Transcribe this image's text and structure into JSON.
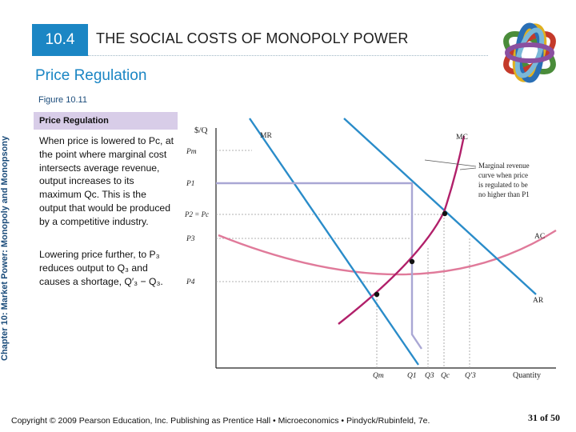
{
  "header": {
    "section_number": "10.4",
    "title": "THE SOCIAL COSTS OF MONOPOLY POWER"
  },
  "subtitle": "Price Regulation",
  "side_label": "Chapter 10: Market Power: Monopoly and Monopsony",
  "figure_label": "Figure 10.11",
  "textbox": {
    "title": "Price Regulation",
    "para1": "When price is lowered to Pᴄ, at the point where marginal cost intersects average revenue, output increases to its maximum Qᴄ. This is the output that would be produced by a competitive industry.",
    "para2": "Lowering price further, to P₃ reduces output to Q₃ and causes a shortage, Q′₃ − Q₃."
  },
  "diagram": {
    "y_axis_label": "$/Q",
    "x_axis_label": "Quantity",
    "price_labels": [
      "Pm",
      "P1",
      "P2 = Pc",
      "P3",
      "P4"
    ],
    "quantity_labels": [
      "Qm",
      "Q1",
      "Q3",
      "Qc",
      "Q′3"
    ],
    "curve_labels": {
      "mr": "MR",
      "mc": "MC",
      "ac": "AC",
      "ar": "AR"
    },
    "annotation": "Marginal revenue curve when price is regulated to be no higher than P1",
    "colors": {
      "demand": "#2a8cc9",
      "mc": "#b1206a",
      "ac": "#e07a9a",
      "regulated": "#a9a7d4"
    }
  },
  "footer": {
    "copyright": "Copyright © 2009 Pearson Education, Inc. Publishing as Prentice Hall • Microeconomics • Pindyck/Rubinfeld, 7e.",
    "page": "31 of 50"
  }
}
